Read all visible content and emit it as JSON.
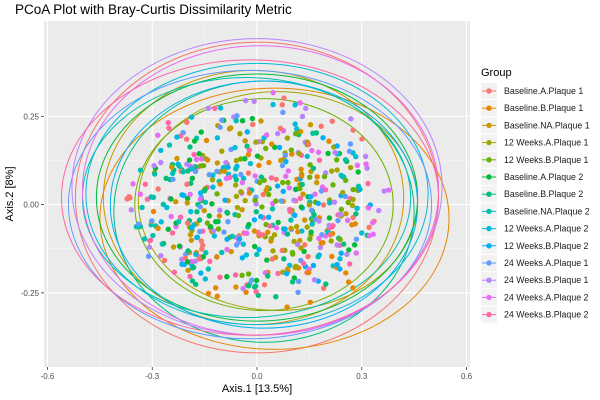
{
  "chart_data": {
    "type": "scatter",
    "title": "PCoA Plot with Bray-Curtis Dissimilarity Metric",
    "xlabel": "Axis.1   [13.5%]",
    "ylabel": "Axis.2   [8%]",
    "xlim": [
      -0.61,
      0.61
    ],
    "ylim": [
      -0.46,
      0.52
    ],
    "x_ticks": [
      -0.6,
      -0.3,
      0.0,
      0.3,
      0.6
    ],
    "x_tick_labels": [
      "-0.6",
      "-0.3",
      "0.0",
      "0.3",
      "0.6"
    ],
    "y_ticks": [
      -0.25,
      0.0,
      0.25
    ],
    "y_tick_labels": [
      "-0.25",
      "0.00",
      "0.25"
    ],
    "grid": true,
    "legend": {
      "title": "Group",
      "placement": "right"
    },
    "series": [
      {
        "name": "Baseline.A.Plaque 1",
        "color": "#F8766D",
        "n": 45,
        "ellipse": {
          "cx": 0.0,
          "cy": 0.02,
          "rx": 0.52,
          "ry": 0.44
        }
      },
      {
        "name": "Baseline.B.Plaque 1",
        "color": "#E58700",
        "n": 45,
        "ellipse": {
          "cx": 0.05,
          "cy": -0.04,
          "rx": 0.5,
          "ry": 0.37
        }
      },
      {
        "name": "Baseline.NA.Plaque 1",
        "color": "#C99800",
        "n": 45,
        "ellipse": {
          "cx": -0.01,
          "cy": 0.02,
          "rx": 0.43,
          "ry": 0.36
        }
      },
      {
        "name": "12 Weeks.A.Plaque 1",
        "color": "#A3A500",
        "n": 45,
        "ellipse": {
          "cx": 0.06,
          "cy": 0.01,
          "rx": 0.4,
          "ry": 0.31
        }
      },
      {
        "name": "12 Weeks.B.Plaque 1",
        "color": "#6BB100",
        "n": 45,
        "ellipse": {
          "cx": 0.02,
          "cy": 0.0,
          "rx": 0.37,
          "ry": 0.3
        }
      },
      {
        "name": "Baseline.A.Plaque 2",
        "color": "#00BA38",
        "n": 45,
        "ellipse": {
          "cx": 0.0,
          "cy": 0.02,
          "rx": 0.46,
          "ry": 0.35
        }
      },
      {
        "name": "Baseline.B.Plaque 2",
        "color": "#00BF7D",
        "n": 45,
        "ellipse": {
          "cx": 0.02,
          "cy": -0.02,
          "rx": 0.43,
          "ry": 0.37
        }
      },
      {
        "name": "Baseline.NA.Plaque 2",
        "color": "#00C0AF",
        "n": 45,
        "ellipse": {
          "cx": -0.03,
          "cy": 0.02,
          "rx": 0.47,
          "ry": 0.34
        }
      },
      {
        "name": "12 Weeks.A.Plaque 2",
        "color": "#00BCD8",
        "n": 45,
        "ellipse": {
          "cx": 0.0,
          "cy": 0.03,
          "rx": 0.49,
          "ry": 0.37
        }
      },
      {
        "name": "12 Weeks.B.Plaque 2",
        "color": "#00B0F6",
        "n": 45,
        "ellipse": {
          "cx": 0.02,
          "cy": 0.0,
          "rx": 0.44,
          "ry": 0.35
        }
      },
      {
        "name": "24 Weeks.A.Plaque 1",
        "color": "#619CFF",
        "n": 45,
        "ellipse": {
          "cx": -0.02,
          "cy": 0.0,
          "rx": 0.52,
          "ry": 0.38
        }
      },
      {
        "name": "24 Weeks.B.Plaque 1",
        "color": "#B983FF",
        "n": 45,
        "ellipse": {
          "cx": 0.0,
          "cy": 0.05,
          "rx": 0.53,
          "ry": 0.42
        }
      },
      {
        "name": "24 Weeks.A.Plaque 2",
        "color": "#E76BF3",
        "n": 45,
        "ellipse": {
          "cx": 0.01,
          "cy": 0.04,
          "rx": 0.51,
          "ry": 0.41
        }
      },
      {
        "name": "24 Weeks.B.Plaque 2",
        "color": "#FF67A4",
        "n": 45,
        "ellipse": {
          "cx": -0.02,
          "cy": 0.02,
          "rx": 0.54,
          "ry": 0.39
        }
      }
    ]
  }
}
